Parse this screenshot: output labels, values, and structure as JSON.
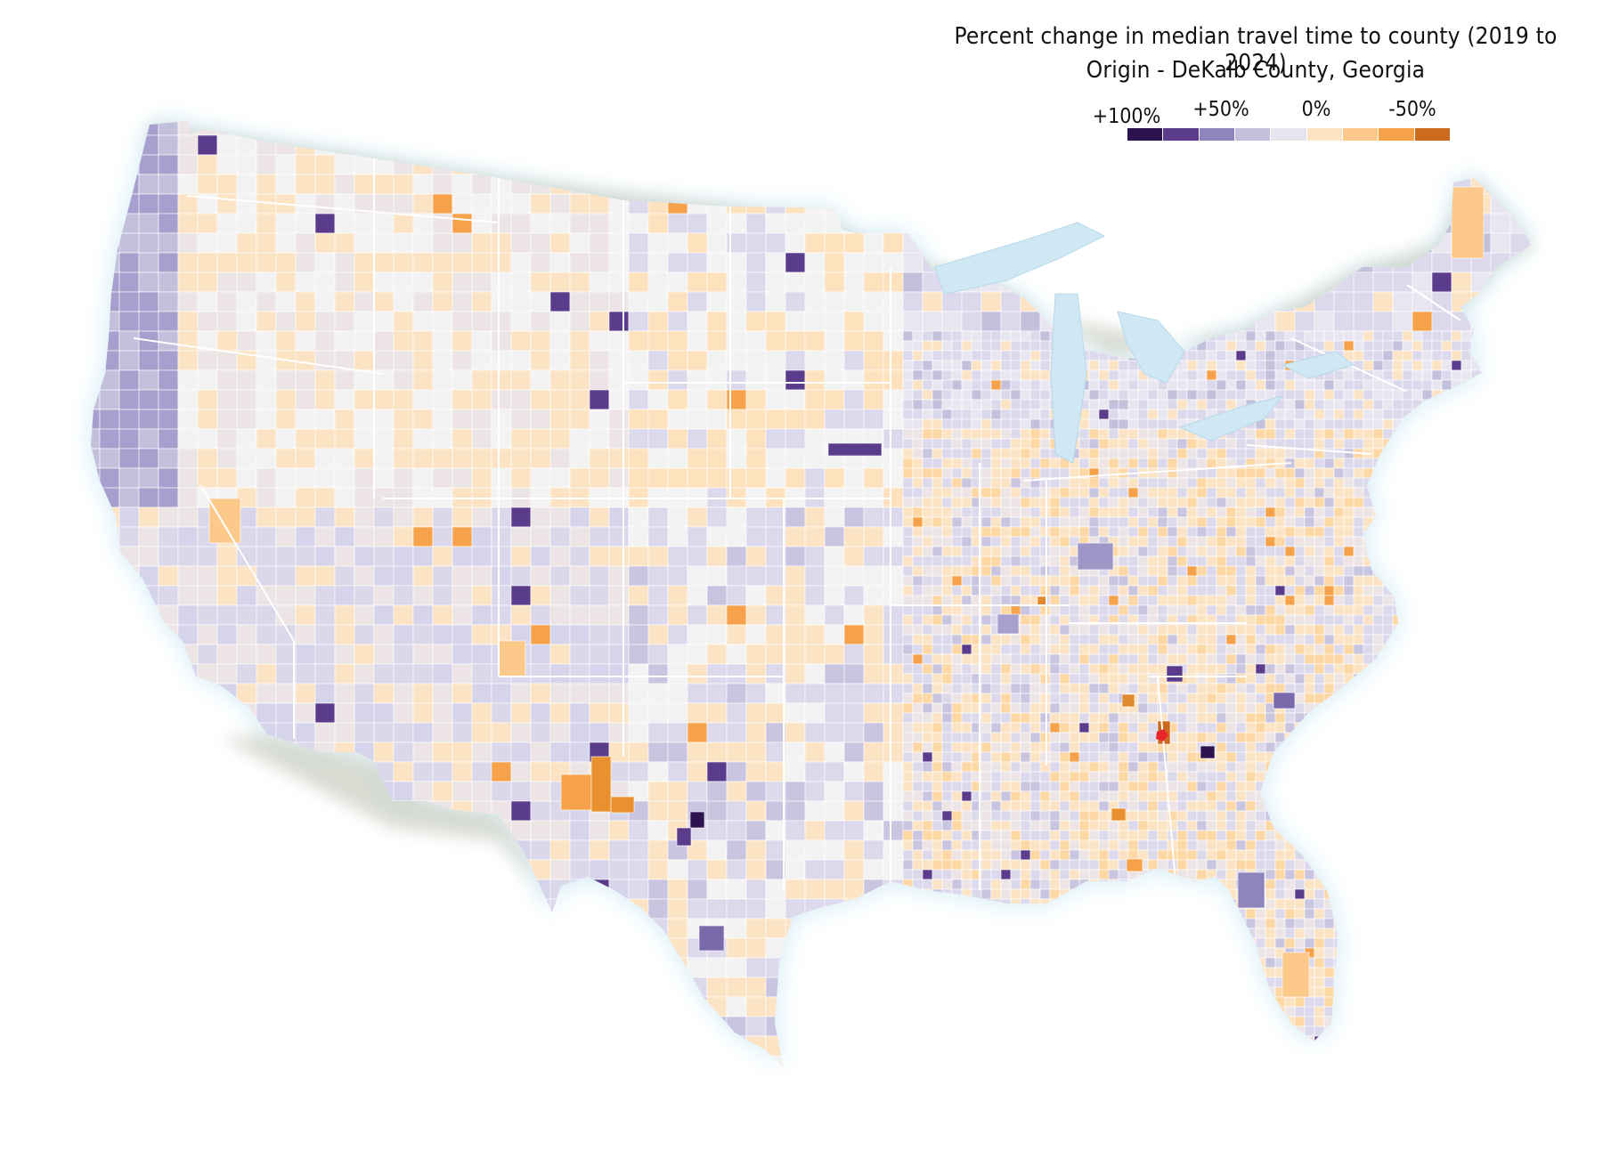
{
  "title": {
    "line1": "Percent change in median travel time to county (2019 to 2024)",
    "line2": "Origin - DeKalb County, Georgia"
  },
  "legend": {
    "ticks": [
      "+100%",
      "+50%",
      "0%",
      "-50%"
    ],
    "colors": [
      "#2d1450",
      "#5a3b8c",
      "#8f85bd",
      "#c3c0dc",
      "#e6e4ee",
      "#fbe3c4",
      "#fdc98a",
      "#f5a24a",
      "#cc6a1e"
    ]
  },
  "colors": {
    "land": "#f3f3f3",
    "water": "#d6ecf6",
    "lakes": "#cfe8f4",
    "canada": "#dcdcd4",
    "origin": "#e8262a"
  },
  "map_data": {
    "type": "choropleth",
    "region": "Contiguous United States counties",
    "origin_county": "DeKalb County, Georgia"
  }
}
